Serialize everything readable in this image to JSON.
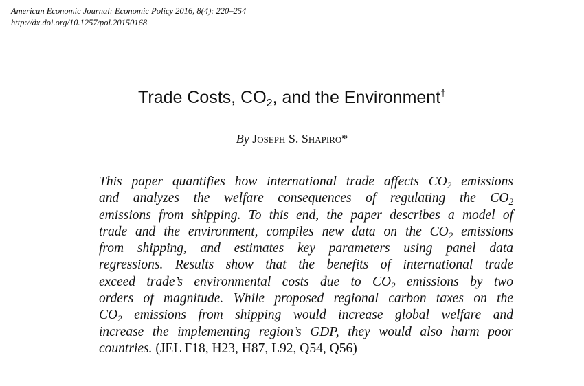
{
  "header": {
    "citation": "American Economic Journal: Economic Policy 2016, 8(4): 220–254",
    "doi": "http://dx.doi.org/10.1257/pol.20150168"
  },
  "title": {
    "pre": "Trade Costs, CO",
    "sub": "2",
    "post": ", and the Environment",
    "mark": "†"
  },
  "byline": {
    "by": "By",
    "author": "Joseph S. Shapiro",
    "mark": "*"
  },
  "abstract": {
    "l1a": "This paper quantifies how international trade affects CO",
    "l1b": " emissions",
    "l2a": "and analyzes the welfare consequences of regulating the CO",
    "l2b": "",
    "l3": "emissions from shipping. To this end, the paper describes a model of",
    "l4a": "trade and the environment, compiles new data on the CO",
    "l4b": " emissions",
    "l5": "from shipping, and estimates key parameters using panel data",
    "l6": "regressions. Results show that the benefits of international trade",
    "l7a": "exceed trade’s environmental costs due to CO",
    "l7b": " emissions by two",
    "l8": "orders of magnitude. While proposed regional carbon taxes on the",
    "l9a": "CO",
    "l9b": " emissions from shipping would increase global welfare and",
    "l10": "increase the implementing region’s GDP, they would also harm poor",
    "l11a": "countries.",
    "jel": " (JEL F18, H23, H87, L92, Q54, Q56)",
    "sub": "2"
  }
}
